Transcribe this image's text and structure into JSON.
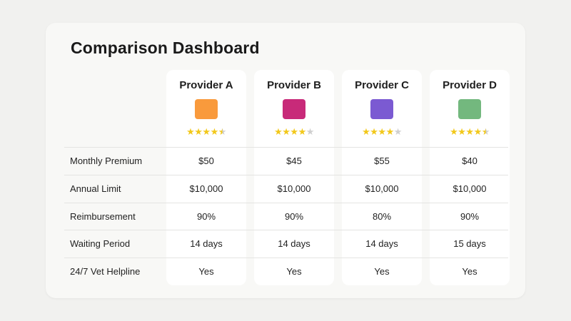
{
  "title": "Comparison Dashboard",
  "providers": [
    {
      "name": "Provider A",
      "color": "#f99a3c",
      "rating": 4.5
    },
    {
      "name": "Provider B",
      "color": "#c82a79",
      "rating": 4
    },
    {
      "name": "Provider C",
      "color": "#7b5ad2",
      "rating": 4
    },
    {
      "name": "Provider D",
      "color": "#73b87e",
      "rating": 4.5
    }
  ],
  "rows": [
    {
      "label": "Monthly Premium",
      "values": [
        "$50",
        "$45",
        "$55",
        "$40"
      ]
    },
    {
      "label": "Annual Limit",
      "values": [
        "$10,000",
        "$10,000",
        "$10,000",
        "$10,000"
      ]
    },
    {
      "label": "Reimbursement",
      "values": [
        "90%",
        "90%",
        "80%",
        "90%"
      ]
    },
    {
      "label": "Waiting Period",
      "values": [
        "14 days",
        "14 days",
        "14 days",
        "15 days"
      ]
    },
    {
      "label": "24/7 Vet Helpline",
      "values": [
        "Yes",
        "Yes",
        "Yes",
        "Yes"
      ]
    }
  ]
}
